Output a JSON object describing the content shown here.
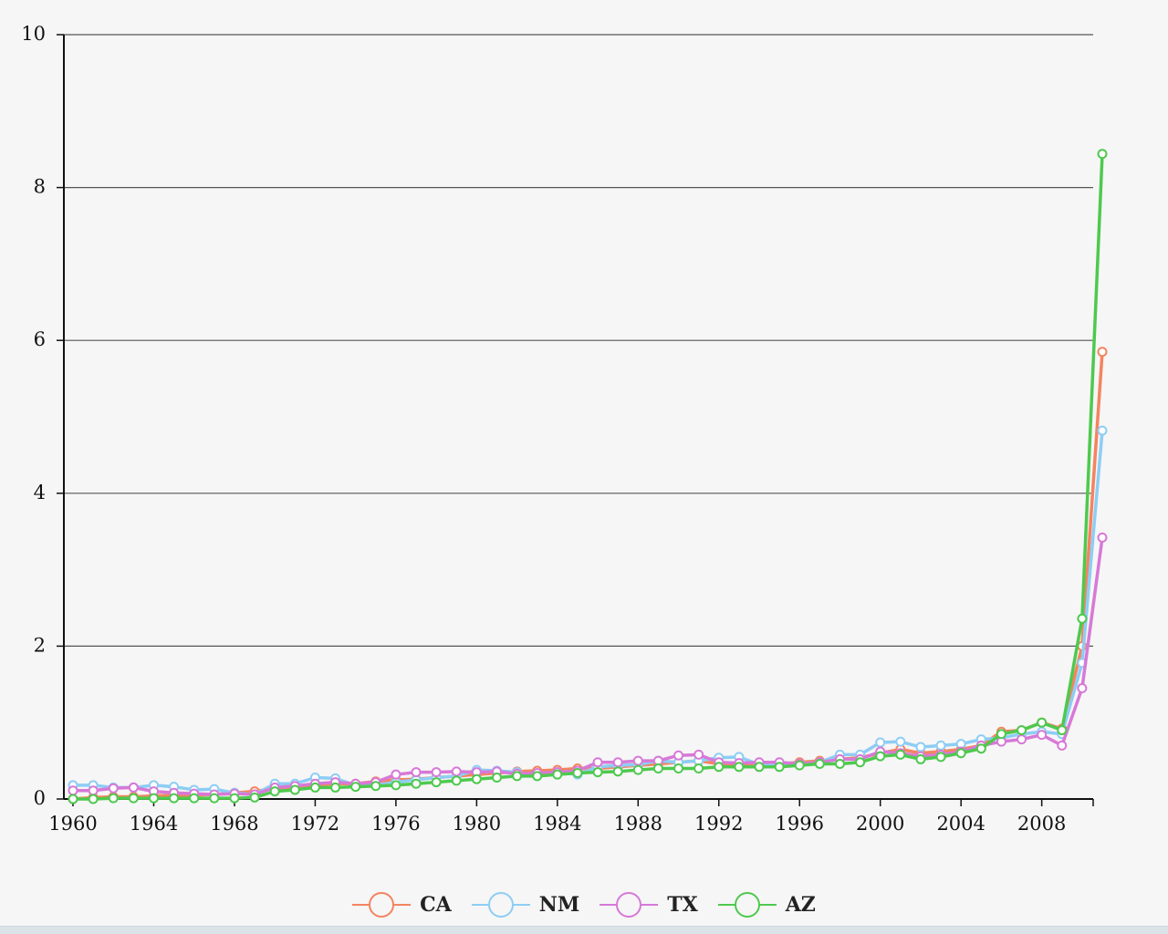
{
  "chart_data": {
    "type": "line",
    "title": "",
    "xlabel": "",
    "ylabel": "",
    "xlim": [
      1960,
      2011
    ],
    "ylim": [
      0,
      10
    ],
    "x_ticks": [
      1960,
      1964,
      1968,
      1972,
      1976,
      1980,
      1984,
      1988,
      1992,
      1996,
      2000,
      2004,
      2008
    ],
    "y_ticks": [
      0,
      2,
      4,
      6,
      8,
      10
    ],
    "grid": "horizontal",
    "legend_position": "bottom-center",
    "x": [
      1960,
      1961,
      1962,
      1963,
      1964,
      1965,
      1966,
      1967,
      1968,
      1969,
      1970,
      1971,
      1972,
      1973,
      1974,
      1975,
      1976,
      1977,
      1978,
      1979,
      1980,
      1981,
      1982,
      1983,
      1984,
      1985,
      1986,
      1987,
      1988,
      1989,
      1990,
      1991,
      1992,
      1993,
      1994,
      1995,
      1996,
      1997,
      1998,
      1999,
      2000,
      2001,
      2002,
      2003,
      2004,
      2005,
      2006,
      2007,
      2008,
      2009,
      2010,
      2011
    ],
    "series": [
      {
        "name": "CA",
        "color": "#f4845f",
        "values": [
          0.0,
          0.02,
          0.03,
          0.03,
          0.04,
          0.05,
          0.05,
          0.06,
          0.08,
          0.1,
          0.14,
          0.16,
          0.18,
          0.2,
          0.2,
          0.23,
          0.25,
          0.26,
          0.28,
          0.3,
          0.32,
          0.34,
          0.36,
          0.37,
          0.38,
          0.4,
          0.4,
          0.42,
          0.44,
          0.46,
          0.48,
          0.5,
          0.46,
          0.45,
          0.45,
          0.46,
          0.48,
          0.5,
          0.52,
          0.54,
          0.6,
          0.65,
          0.6,
          0.62,
          0.65,
          0.7,
          0.88,
          0.9,
          1.0,
          0.92,
          2.0,
          5.85
        ]
      },
      {
        "name": "NM",
        "color": "#8ecdf4",
        "values": [
          0.18,
          0.18,
          0.15,
          0.15,
          0.18,
          0.16,
          0.12,
          0.13,
          0.08,
          0.06,
          0.2,
          0.2,
          0.28,
          0.27,
          0.18,
          0.18,
          0.22,
          0.25,
          0.28,
          0.3,
          0.38,
          0.37,
          0.35,
          0.3,
          0.35,
          0.32,
          0.42,
          0.44,
          0.45,
          0.5,
          0.48,
          0.5,
          0.54,
          0.55,
          0.45,
          0.45,
          0.46,
          0.48,
          0.58,
          0.58,
          0.74,
          0.75,
          0.68,
          0.7,
          0.72,
          0.78,
          0.8,
          0.85,
          0.88,
          0.85,
          1.78,
          4.82
        ]
      },
      {
        "name": "TX",
        "color": "#d779d7",
        "values": [
          0.11,
          0.11,
          0.14,
          0.15,
          0.1,
          0.08,
          0.07,
          0.06,
          0.07,
          0.06,
          0.15,
          0.17,
          0.2,
          0.22,
          0.2,
          0.22,
          0.32,
          0.35,
          0.35,
          0.36,
          0.35,
          0.36,
          0.33,
          0.34,
          0.35,
          0.37,
          0.48,
          0.48,
          0.5,
          0.5,
          0.57,
          0.58,
          0.48,
          0.47,
          0.48,
          0.48,
          0.46,
          0.48,
          0.52,
          0.52,
          0.62,
          0.6,
          0.56,
          0.58,
          0.62,
          0.7,
          0.75,
          0.78,
          0.84,
          0.7,
          1.45,
          3.42
        ]
      },
      {
        "name": "AZ",
        "color": "#4ec94e",
        "values": [
          0.0,
          0.0,
          0.01,
          0.01,
          0.01,
          0.01,
          0.01,
          0.01,
          0.01,
          0.02,
          0.1,
          0.12,
          0.15,
          0.15,
          0.16,
          0.17,
          0.18,
          0.2,
          0.22,
          0.24,
          0.26,
          0.28,
          0.3,
          0.3,
          0.32,
          0.34,
          0.35,
          0.36,
          0.38,
          0.4,
          0.4,
          0.4,
          0.42,
          0.42,
          0.42,
          0.42,
          0.44,
          0.46,
          0.46,
          0.48,
          0.56,
          0.58,
          0.52,
          0.55,
          0.6,
          0.66,
          0.85,
          0.9,
          1.0,
          0.9,
          2.36,
          8.44
        ]
      }
    ]
  }
}
